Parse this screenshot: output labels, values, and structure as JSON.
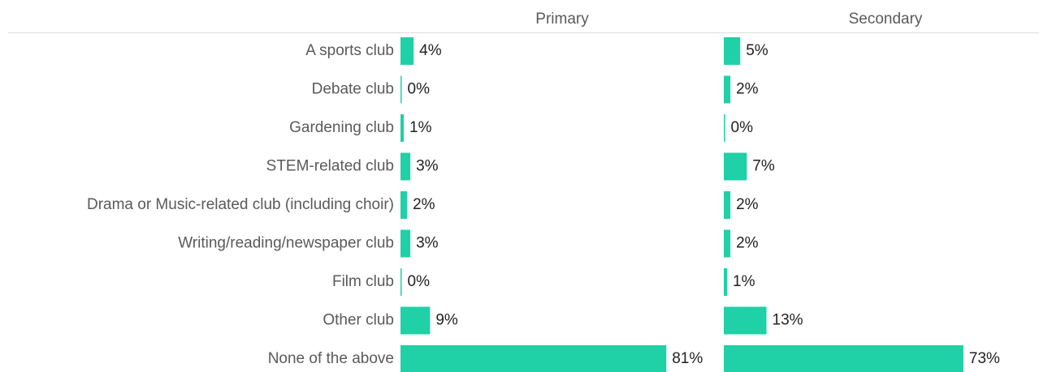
{
  "chart_data": {
    "type": "bar",
    "orientation": "horizontal",
    "categories": [
      "A sports club",
      "Debate club",
      "Gardening club",
      "STEM-related club",
      "Drama or Music-related club (including choir)",
      "Writing/reading/newspaper club",
      "Film club",
      "Other club",
      "None of the above"
    ],
    "series": [
      {
        "name": "Primary",
        "color": "#20d0a6",
        "values": [
          4,
          0,
          1,
          3,
          2,
          3,
          0,
          9,
          81
        ],
        "value_labels": [
          "4%",
          "0%",
          "1%",
          "3%",
          "2%",
          "3%",
          "0%",
          "9%",
          "81%"
        ]
      },
      {
        "name": "Secondary",
        "color": "#20d0a6",
        "values": [
          5,
          2,
          0,
          7,
          2,
          2,
          1,
          13,
          73
        ],
        "value_labels": [
          "5%",
          "2%",
          "0%",
          "7%",
          "2%",
          "2%",
          "1%",
          "13%",
          "73%"
        ]
      }
    ]
  }
}
